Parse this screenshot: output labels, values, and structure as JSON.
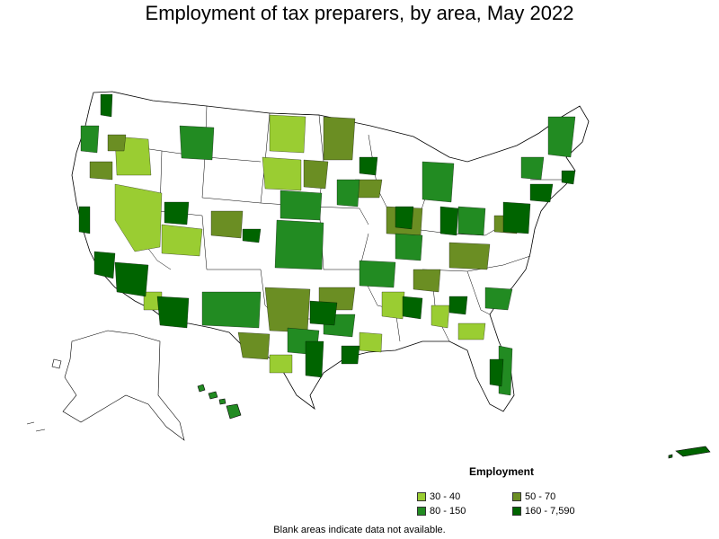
{
  "title": "Employment of tax preparers, by area, May 2022",
  "legend": {
    "title": "Employment",
    "items": [
      {
        "label": "30 - 40",
        "color": "#9acd32"
      },
      {
        "label": "50 - 70",
        "color": "#6b8e23"
      },
      {
        "label": "80 - 150",
        "color": "#228b22"
      },
      {
        "label": "160 - 7,590",
        "color": "#006400"
      }
    ]
  },
  "footnote": "Blank areas indicate data not available.",
  "colors": {
    "c1": "#9acd32",
    "c2": "#6b8e23",
    "c3": "#228b22",
    "c4": "#006400",
    "blank": "#ffffff"
  }
}
